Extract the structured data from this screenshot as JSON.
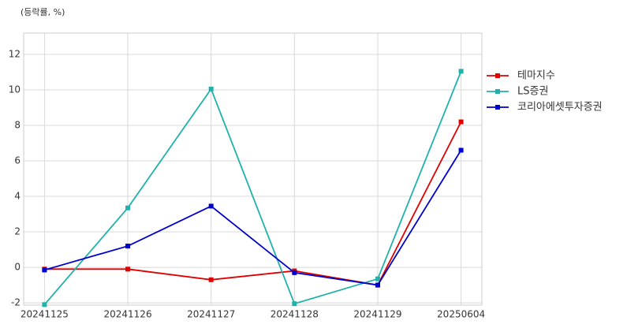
{
  "chart_data": {
    "type": "line",
    "y_unit_label": "(등락률, %)",
    "categories": [
      "20241125",
      "20241126",
      "20241127",
      "20241128",
      "20241129",
      "20250604"
    ],
    "series": [
      {
        "name": "테마지수",
        "color": "#e00000",
        "values": [
          -0.1,
          -0.1,
          -0.7,
          -0.2,
          -1.0,
          8.2
        ]
      },
      {
        "name": "LS증권",
        "color": "#20b2aa",
        "values": [
          -2.1,
          3.35,
          10.05,
          -2.05,
          -0.65,
          11.05
        ]
      },
      {
        "name": "코리아에셋투자증권",
        "color": "#0000cd",
        "values": [
          -0.15,
          1.2,
          3.45,
          -0.3,
          -1.0,
          6.6
        ]
      }
    ],
    "ylim": [
      -2.13,
      13.2
    ],
    "yticks": [
      -2,
      0,
      2,
      4,
      6,
      8,
      10,
      12
    ],
    "grid": true,
    "legend": "right"
  }
}
